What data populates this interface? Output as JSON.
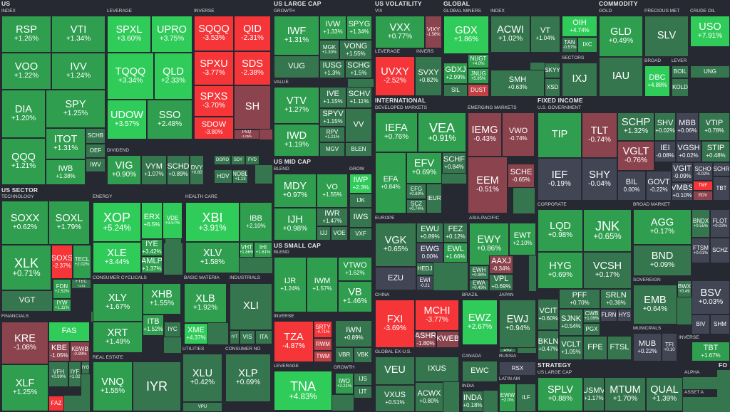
{
  "colors": {
    "background": "#262931",
    "strong_gain": "#30cc5a",
    "gain": "#2f9e4f",
    "small_gain": "#35764e",
    "flat": "#414554",
    "small_loss": "#8b444e",
    "loss": "#bf4045",
    "strong_loss": "#f63538"
  },
  "sectors": {
    "us": "US",
    "us_sector": "US SECTOR",
    "us_large_cap": "US LARGE CAP",
    "us_mid_cap": "US MID CAP",
    "us_small_cap": "US SMALL CAP",
    "us_volatility": "US VOLATILITY",
    "global": "GLOBAL",
    "commodity": "COMMODITY",
    "international": "INTERNATIONAL",
    "fixed_income": "FIXED INCOME",
    "strategy": "STRATEGY",
    "fo": "FO"
  },
  "subsectors": {
    "index": "INDEX",
    "leverage": "LEVERAGE",
    "inverse": "INVERSE",
    "dividend": "DIVIDEND",
    "technology": "TECHNOLOGY",
    "energy": "ENERGY",
    "health_care": "HEALTH CARE",
    "consumer_cyclicals": "CONSUMER CYCLICALS",
    "basic_materia": "BASIC MATERIA",
    "industrials": "INDUSTRIALS",
    "financials": "FINANCIALS",
    "real_estate": "REAL ESTATE",
    "utilities": "UTILITIES",
    "consumer_no": "CONSUMER NO",
    "growth": "GROWTH",
    "value": "VALUE",
    "blend": "BLEND",
    "grow": "GROW",
    "vix": "VIX",
    "invers": "INVERS",
    "global_miners": "GLOBAL MINERS",
    "sectors": "SECTORS",
    "gold": "GOLD",
    "precious_met": "PRECIOUS MET",
    "crude_oil": "CRUDE OIL",
    "broad": "BROAD",
    "lever": "LEVER",
    "developed_markets": "DEVELOPED MARKETS",
    "emerging_markets": "EMERGING MARKETS",
    "europe": "EUROPE",
    "asia_pacific": "ASIA-PACIFIC",
    "china": "CHINA",
    "brazil": "BRAZIL",
    "japan": "JAPAN",
    "global_ex_us": "GLOBAL EX-U.S.",
    "canada": "CANADA",
    "russia": "RUSSIA",
    "india": "INDIA",
    "latin_am": "LATIN AM",
    "us_government": "U.S. GOVERNMENT",
    "corporate": "CORPORATE",
    "broad_market": "BROAD MARKET",
    "sovereign": "SOVEREIGN",
    "municipals": "MUNICIPALS",
    "us_large_cap_s": "US LARGE CAP",
    "alpha": "ALPHA",
    "asset_a": "ASSET A"
  },
  "tiles": [
    {
      "t": "RSP",
      "p": "+1.26%"
    },
    {
      "t": "VTI",
      "p": "+1.34%"
    },
    {
      "t": "VOO",
      "p": "+1.22%"
    },
    {
      "t": "IVV",
      "p": "+1.24%"
    },
    {
      "t": "DIA",
      "p": "+1.20%"
    },
    {
      "t": "SPY",
      "p": "+1.25%"
    },
    {
      "t": "QQQ",
      "p": "+1.21%"
    },
    {
      "t": "ITOT",
      "p": "+1.31%"
    },
    {
      "t": "IWB",
      "p": "+1.38%"
    },
    {
      "t": "SCHB",
      "p": ""
    },
    {
      "t": "OEF",
      "p": ""
    },
    {
      "t": "IWV",
      "p": ""
    },
    {
      "t": "SPXL",
      "p": "+3.60%"
    },
    {
      "t": "UPRO",
      "p": "+3.75%"
    },
    {
      "t": "TQQQ",
      "p": "+3.34%"
    },
    {
      "t": "QLD",
      "p": "+2.33%"
    },
    {
      "t": "UDOW",
      "p": "+3.57%"
    },
    {
      "t": "SSO",
      "p": "+2.48%"
    },
    {
      "t": "SQQQ",
      "p": "-3.53%"
    },
    {
      "t": "QID",
      "p": "-2.31%"
    },
    {
      "t": "SPXU",
      "p": "-3.77%"
    },
    {
      "t": "SDS",
      "p": "-2.38%"
    },
    {
      "t": "SPXS",
      "p": "-3.70%"
    },
    {
      "t": "SH",
      "p": ""
    },
    {
      "t": "SDOW",
      "p": "-3.80%"
    },
    {
      "t": "PSQ",
      "p": "-1.05%"
    },
    {
      "t": "VIG",
      "p": "+0.90%"
    },
    {
      "t": "VYM",
      "p": "+1.07%"
    },
    {
      "t": "SCHD",
      "p": "+0.89%"
    },
    {
      "t": "DVY",
      "p": "+0.60"
    },
    {
      "t": "DGRO",
      "p": ""
    },
    {
      "t": "SDY",
      "p": ""
    },
    {
      "t": "FVD",
      "p": ""
    },
    {
      "t": "HDV",
      "p": ""
    },
    {
      "t": "NOBL",
      "p": "+1.13"
    },
    {
      "t": "SOXX",
      "p": "+0.62%"
    },
    {
      "t": "SOXL",
      "p": "+1.79%"
    },
    {
      "t": "XLK",
      "p": "+0.71%"
    },
    {
      "t": "SOXS",
      "p": "-2.37%"
    },
    {
      "t": "TECL",
      "p": "+2.02%"
    },
    {
      "t": "VGT",
      "p": ""
    },
    {
      "t": "FDN",
      "p": "+2.52%"
    },
    {
      "t": "FTEC",
      "p": "+1.01"
    },
    {
      "t": "IYW",
      "p": "+1.11%"
    },
    {
      "t": "XOP",
      "p": "+5.24%"
    },
    {
      "t": "ERX",
      "p": "+6.5%"
    },
    {
      "t": "VDE",
      "p": "+3.57%"
    },
    {
      "t": "XLE",
      "p": "+3.44%"
    },
    {
      "t": "IYE",
      "p": "+3.42%"
    },
    {
      "t": "AMLP",
      "p": "+1.37%"
    },
    {
      "t": "XBI",
      "p": "+3.91%"
    },
    {
      "t": "IBB",
      "p": "+2.10%"
    },
    {
      "t": "XLV",
      "p": "+1.58%"
    },
    {
      "t": "VHT",
      "p": "+1.86%"
    },
    {
      "t": "IHI",
      "p": "+1.61%"
    },
    {
      "t": "XLY",
      "p": "+1.67%"
    },
    {
      "t": "XHB",
      "p": "+1.55%"
    },
    {
      "t": "XRT",
      "p": "+1.49%"
    },
    {
      "t": "ITB",
      "p": "+1.52%"
    },
    {
      "t": "IYC",
      "p": ""
    },
    {
      "t": "XLB",
      "p": "+1.92%"
    },
    {
      "t": "XME",
      "p": "+4.37%"
    },
    {
      "t": "XLI",
      "p": ""
    },
    {
      "t": "IYT",
      "p": ""
    },
    {
      "t": "VIS",
      "p": ""
    },
    {
      "t": "ITA",
      "p": ""
    },
    {
      "t": "KRE",
      "p": "-1.08%"
    },
    {
      "t": "FAS",
      "p": ""
    },
    {
      "t": "XLF",
      "p": "+1.25%"
    },
    {
      "t": "KBE",
      "p": "-1.05%"
    },
    {
      "t": "KBWB",
      "p": "-0.99%"
    },
    {
      "t": "VFH",
      "p": "+0.99%"
    },
    {
      "t": "IYF",
      "p": "+1.02"
    },
    {
      "t": "IYG",
      "p": ""
    },
    {
      "t": "FAZ",
      "p": ""
    },
    {
      "t": "VNQ",
      "p": "+1.55%"
    },
    {
      "t": "IYR",
      "p": ""
    },
    {
      "t": "XLU",
      "p": "+0.42%"
    },
    {
      "t": "VPU",
      "p": ""
    },
    {
      "t": "XLP",
      "p": "+0.69%"
    },
    {
      "t": "IWF",
      "p": "+1.31%"
    },
    {
      "t": "IVW",
      "p": "+1.33%"
    },
    {
      "t": "SPYG",
      "p": "+1.34%"
    },
    {
      "t": "VUG",
      "p": ""
    },
    {
      "t": "MGK",
      "p": "+1.30%"
    },
    {
      "t": "VONG",
      "p": "+1.55%"
    },
    {
      "t": "IUSG",
      "p": "+1.3%"
    },
    {
      "t": "SCHG",
      "p": "+1.5%"
    },
    {
      "t": "VTV",
      "p": "+1.27%"
    },
    {
      "t": "IVE",
      "p": "+1.15%"
    },
    {
      "t": "SCHV",
      "p": "+1.11%"
    },
    {
      "t": "SPYV",
      "p": "+1.15%"
    },
    {
      "t": "IWD",
      "p": "+1.19%"
    },
    {
      "t": "RPV",
      "p": "+1.21%"
    },
    {
      "t": "VV",
      "p": ""
    },
    {
      "t": "MGV",
      "p": ""
    },
    {
      "t": "BLEN",
      "p": ""
    },
    {
      "t": "MDY",
      "p": "+0.97%"
    },
    {
      "t": "VO",
      "p": "+1.55%"
    },
    {
      "t": "IWP",
      "p": "+2.3%"
    },
    {
      "t": "IJK",
      "p": ""
    },
    {
      "t": "IJH",
      "p": "+0.98%"
    },
    {
      "t": "IWR",
      "p": "+1.47%"
    },
    {
      "t": "IJJ",
      "p": ""
    },
    {
      "t": "IWS",
      "p": ""
    },
    {
      "t": "VOE",
      "p": ""
    },
    {
      "t": "VXF",
      "p": ""
    },
    {
      "t": "IJR",
      "p": "+1.24%"
    },
    {
      "t": "IWM",
      "p": "+1.57%"
    },
    {
      "t": "VTWO",
      "p": "+1.62%"
    },
    {
      "t": "VB",
      "p": "+1.46%"
    },
    {
      "t": "VBR",
      "p": ""
    },
    {
      "t": "IWN",
      "p": "+0.89%"
    },
    {
      "t": "IWO",
      "p": "+2.21%"
    },
    {
      "t": "VBK",
      "p": ""
    },
    {
      "t": "TZA",
      "p": "-4.87%"
    },
    {
      "t": "SRTY",
      "p": "-4.71%"
    },
    {
      "t": "RWM",
      "p": ""
    },
    {
      "t": "TWM",
      "p": ""
    },
    {
      "t": "TNA",
      "p": "+4.83%"
    },
    {
      "t": "IJS",
      "p": ""
    },
    {
      "t": "IJT",
      "p": ""
    },
    {
      "t": "VXX",
      "p": "+0.77%"
    },
    {
      "t": "VIXY",
      "p": "-1.56%"
    },
    {
      "t": "UVXY",
      "p": "-2.52%"
    },
    {
      "t": "SVXY",
      "p": "+0.82%"
    },
    {
      "t": "GDX",
      "p": "+1.86%"
    },
    {
      "t": "NUGT",
      "p": "+4.0%"
    },
    {
      "t": "GDXJ",
      "p": "+2.99%"
    },
    {
      "t": "JNUG",
      "p": "+5.95%"
    },
    {
      "t": "SIL",
      "p": ""
    },
    {
      "t": "DUST",
      "p": ""
    },
    {
      "t": "ACWI",
      "p": "+1.02%"
    },
    {
      "t": "VT",
      "p": "+1.04%"
    },
    {
      "t": "SMH",
      "p": "+0.63%"
    },
    {
      "t": "SKYY",
      "p": ""
    },
    {
      "t": "XSD",
      "p": ""
    },
    {
      "t": "OIH",
      "p": "+4.74%"
    },
    {
      "t": "TAN",
      "p": "-0.57%"
    },
    {
      "t": "IXC",
      "p": ""
    },
    {
      "t": "IXJ",
      "p": ""
    },
    {
      "t": "GLD",
      "p": "+0.49%"
    },
    {
      "t": "IAU",
      "p": ""
    },
    {
      "t": "SLV",
      "p": ""
    },
    {
      "t": "USO",
      "p": "+7.91%"
    },
    {
      "t": "UNG",
      "p": ""
    },
    {
      "t": "DBC",
      "p": "+4.88%"
    },
    {
      "t": "BOIL",
      "p": ""
    },
    {
      "t": "KOLD",
      "p": ""
    },
    {
      "t": "IEFA",
      "p": "+0.76%"
    },
    {
      "t": "VEA",
      "p": "+0.91%"
    },
    {
      "t": "EFA",
      "p": "+0.84%"
    },
    {
      "t": "EFV",
      "p": "+0.69%"
    },
    {
      "t": "SCHF",
      "p": "+0.84%"
    },
    {
      "t": "EFG",
      "p": "+0.89%"
    },
    {
      "t": "IEUR",
      "p": ""
    },
    {
      "t": "SCZ",
      "p": "+0.74%"
    },
    {
      "t": "IEMG",
      "p": "-0.43%"
    },
    {
      "t": "VWO",
      "p": "-0.74%"
    },
    {
      "t": "EEM",
      "p": "-0.51%"
    },
    {
      "t": "SCHE",
      "p": "-0.65%"
    },
    {
      "t": "VGK",
      "p": "+0.65%"
    },
    {
      "t": "EWU",
      "p": "+0.89%"
    },
    {
      "t": "FEZ",
      "p": "+0.12%"
    },
    {
      "t": "EWG",
      "p": "0.00%"
    },
    {
      "t": "EWL",
      "p": "+1.66%"
    },
    {
      "t": "HEDJ",
      "p": ""
    },
    {
      "t": "EZU",
      "p": ""
    },
    {
      "t": "EWI",
      "p": "-0.21"
    },
    {
      "t": "EWY",
      "p": "+0.86%"
    },
    {
      "t": "EWT",
      "p": "+2.10%"
    },
    {
      "t": "EWH",
      "p": "+0.98%"
    },
    {
      "t": "AAXJ",
      "p": "-0.34%"
    },
    {
      "t": "EWA",
      "p": "+0.49%"
    },
    {
      "t": "VPL",
      "p": "+0.69%"
    },
    {
      "t": "FXI",
      "p": "-3.69%"
    },
    {
      "t": "MCHI",
      "p": "-3.77%"
    },
    {
      "t": "ASHR",
      "p": "-1.80%"
    },
    {
      "t": "KWEB",
      "p": ""
    },
    {
      "t": "EWZ",
      "p": "+2.67%"
    },
    {
      "t": "EWJ",
      "p": "+0.94%"
    },
    {
      "t": "DXJ",
      "p": ""
    },
    {
      "t": "VEU",
      "p": ""
    },
    {
      "t": "IXUS",
      "p": ""
    },
    {
      "t": "VXUS",
      "p": "+0.51%"
    },
    {
      "t": "ACWX",
      "p": "+0.80%"
    },
    {
      "t": "EWC",
      "p": ""
    },
    {
      "t": "RSX",
      "p": ""
    },
    {
      "t": "INDA",
      "p": "+0.18%"
    },
    {
      "t": "ILF",
      "p": ""
    },
    {
      "t": "EWW",
      "p": "+2.0%"
    },
    {
      "t": "TIP",
      "p": ""
    },
    {
      "t": "TLT",
      "p": "-0.74%"
    },
    {
      "t": "SCHP",
      "p": "+1.32%"
    },
    {
      "t": "SHV",
      "p": "+0.02%"
    },
    {
      "t": "MBB",
      "p": "+0.06%"
    },
    {
      "t": "VTIP",
      "p": "+0.78%"
    },
    {
      "t": "IEF",
      "p": "-0.19%"
    },
    {
      "t": "SHY",
      "p": "-0.04%"
    },
    {
      "t": "VGLT",
      "p": "-0.76%"
    },
    {
      "t": "IEI",
      "p": "-0.08%"
    },
    {
      "t": "VGSH",
      "p": "+0.02%"
    },
    {
      "t": "STIP",
      "p": "+0.48%"
    },
    {
      "t": "BIL",
      "p": "0.00%"
    },
    {
      "t": "GOVT",
      "p": "-0.22%"
    },
    {
      "t": "VGIT",
      "p": "-0.09%"
    },
    {
      "t": "SCHO",
      "p": "-0.02%"
    },
    {
      "t": "VMBS",
      "p": "+0.10%"
    },
    {
      "t": "TMF",
      "p": ""
    },
    {
      "t": "EDV",
      "p": ""
    },
    {
      "t": "SCHR",
      "p": ""
    },
    {
      "t": "TBT",
      "p": ""
    },
    {
      "t": "LQD",
      "p": "+0.98%"
    },
    {
      "t": "JNK",
      "p": "+0.65%"
    },
    {
      "t": "HYG",
      "p": "+0.69%"
    },
    {
      "t": "VCSH",
      "p": "+0.17%"
    },
    {
      "t": "PFF",
      "p": "+0.70%"
    },
    {
      "t": "SRLN",
      "p": "+0.36%"
    },
    {
      "t": "VCIT",
      "p": "+0.60%"
    },
    {
      "t": "SJNK",
      "p": "+0.54%"
    },
    {
      "t": "CWB",
      "p": "+1.09%"
    },
    {
      "t": "PGX",
      "p": ""
    },
    {
      "t": "FLRN",
      "p": ""
    },
    {
      "t": "HYS",
      "p": ""
    },
    {
      "t": "BKLN",
      "p": "+0.47%"
    },
    {
      "t": "VCLT",
      "p": "+1.05%"
    },
    {
      "t": "FPE",
      "p": ""
    },
    {
      "t": "FTSL",
      "p": ""
    },
    {
      "t": "AGG",
      "p": "+0.17%"
    },
    {
      "t": "BND",
      "p": "+0.09%"
    },
    {
      "t": "BNDX",
      "p": "+0.55%"
    },
    {
      "t": "FLOT",
      "p": "+0.03%"
    },
    {
      "t": "FTSM",
      "p": "+0.01%"
    },
    {
      "t": "SCHZ",
      "p": ""
    },
    {
      "t": "EMB",
      "p": "+0.64%"
    },
    {
      "t": "BWX",
      "p": "+0.49"
    },
    {
      "t": "MUB",
      "p": "+0.22%"
    },
    {
      "t": "TFI",
      "p": "+0.10"
    },
    {
      "t": "BSV",
      "p": "+0.03%"
    },
    {
      "t": "BIV",
      "p": ""
    },
    {
      "t": "SHM",
      "p": ""
    },
    {
      "t": "TBT",
      "p": "+1.67%"
    },
    {
      "t": "SPLV",
      "p": "+0.88%"
    },
    {
      "t": "USMV",
      "p": "+1.17%"
    },
    {
      "t": "MTUM",
      "p": "+1.70%"
    },
    {
      "t": "QUAL",
      "p": "+1.39%"
    }
  ]
}
